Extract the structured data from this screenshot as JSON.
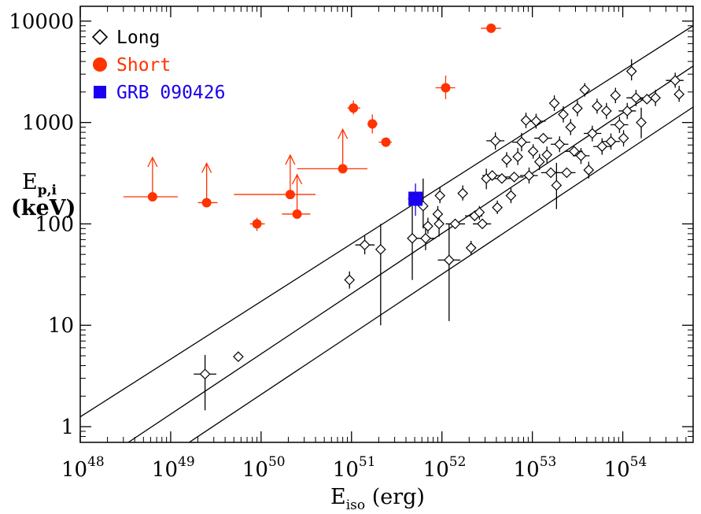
{
  "chart_data": {
    "type": "scatter",
    "xscale": "log",
    "yscale": "log",
    "xlim": [
      1e+48,
      6e+54
    ],
    "ylim": [
      0.7,
      14000
    ],
    "xticks": [
      {
        "base": "10",
        "exp": "48",
        "value": 1e+48
      },
      {
        "base": "10",
        "exp": "49",
        "value": 1e+49
      },
      {
        "base": "10",
        "exp": "50",
        "value": 1e+50
      },
      {
        "base": "10",
        "exp": "51",
        "value": 1e+51
      },
      {
        "base": "10",
        "exp": "52",
        "value": 1e+52
      },
      {
        "base": "10",
        "exp": "53",
        "value": 1e+53
      },
      {
        "base": "10",
        "exp": "54",
        "value": 1e+54
      }
    ],
    "yticks": [
      {
        "label": "1",
        "value": 1
      },
      {
        "label": "10",
        "value": 10
      },
      {
        "label": "100",
        "value": 100
      },
      {
        "label": "1000",
        "value": 1000
      },
      {
        "label": "10000",
        "value": 10000
      }
    ],
    "xlabel": {
      "main": "E",
      "sub": "iso",
      "unit": " (erg)"
    },
    "ylabel": {
      "main": "E",
      "sub": "p,i",
      "unit": "(keV)"
    },
    "legend": {
      "placement": "top-left",
      "entries": [
        {
          "label": "Long",
          "marker": "diamond",
          "color": "#000000"
        },
        {
          "label": "Short",
          "marker": "circle",
          "color": "#ff3300"
        },
        {
          "label": "GRB 090426",
          "marker": "square",
          "color": "#1a00ee"
        }
      ]
    },
    "lines": [
      {
        "x": [
          1e+48,
          6e+54
        ],
        "y": [
          1.25,
          9000
        ]
      },
      {
        "x": [
          3.4e+48,
          6e+54
        ],
        "y": [
          0.7,
          3600
        ]
      },
      {
        "x": [
          1.6e+49,
          6e+54
        ],
        "y": [
          0.7,
          1420
        ]
      }
    ],
    "series": [
      {
        "name": "Long",
        "marker": "diamond",
        "color": "#000000",
        "points": [
          {
            "x": 2.4e+49,
            "y": 3.3,
            "xerr": [
              1.8e+49,
              3.2e+49
            ],
            "yerr": [
              1.45,
              5.1
            ]
          },
          {
            "x": 5.6e+49,
            "y": 4.9
          },
          {
            "x": 9.5e+50,
            "y": 28,
            "yerr": [
              23,
              34
            ]
          },
          {
            "x": 1.4e+51,
            "y": 62,
            "xerr": [
              1.1e+51,
              1.8e+51
            ],
            "yerr": [
              50,
              76
            ]
          },
          {
            "x": 2.1e+51,
            "y": 56,
            "yerr": [
              10,
              100
            ]
          },
          {
            "x": 4.7e+51,
            "y": 72,
            "yerr": [
              28,
              150
            ]
          },
          {
            "x": 6.6e+51,
            "y": 72,
            "xerr": [
              5.3e+51,
              8.5e+51
            ],
            "yerr": [
              55,
              95
            ]
          },
          {
            "x": 6.2e+51,
            "y": 150,
            "yerr": [
              90,
              280
            ]
          },
          {
            "x": 7e+51,
            "y": 95,
            "yerr": [
              80,
              115
            ]
          },
          {
            "x": 9.5e+51,
            "y": 190,
            "yerr": [
              160,
              230
            ]
          },
          {
            "x": 9e+51,
            "y": 125,
            "yerr": [
              100,
              150
            ]
          },
          {
            "x": 9.3e+51,
            "y": 100,
            "yerr": [
              75,
              130
            ]
          },
          {
            "x": 1.2e+52,
            "y": 44,
            "xerr": [
              9e+51,
              1.6e+52
            ],
            "yerr": [
              11,
              100
            ]
          },
          {
            "x": 1.7e+52,
            "y": 200,
            "yerr": [
              170,
              240
            ]
          },
          {
            "x": 1.4e+52,
            "y": 100,
            "xerr": [
              1.1e+52,
              1.8e+52
            ]
          },
          {
            "x": 2.1e+52,
            "y": 58,
            "yerr": [
              50,
              68
            ]
          },
          {
            "x": 2.3e+52,
            "y": 120,
            "xerr": [
              1.8e+52,
              2.8e+52
            ]
          },
          {
            "x": 2.6e+52,
            "y": 130,
            "yerr": [
              110,
              150
            ]
          },
          {
            "x": 2.8e+52,
            "y": 100,
            "xerr": [
              2.2e+52,
              3.5e+52
            ]
          },
          {
            "x": 3.1e+52,
            "y": 280,
            "yerr": [
              220,
              350
            ]
          },
          {
            "x": 3.6e+52,
            "y": 300,
            "xerr": [
              2.8e+52,
              4.5e+52
            ]
          },
          {
            "x": 3.9e+52,
            "y": 660,
            "xerr": [
              3.1e+52,
              4.9e+52
            ],
            "yerr": [
              540,
              800
            ]
          },
          {
            "x": 4.1e+52,
            "y": 145,
            "yerr": [
              125,
              170
            ]
          },
          {
            "x": 4.6e+52,
            "y": 280,
            "xerr": [
              3.6e+52,
              5.7e+52
            ]
          },
          {
            "x": 5.2e+52,
            "y": 430,
            "yerr": [
              360,
              510
            ]
          },
          {
            "x": 5.8e+52,
            "y": 190,
            "yerr": [
              160,
              225
            ]
          },
          {
            "x": 6.3e+52,
            "y": 290,
            "xerr": [
              5e+52,
              8e+52
            ]
          },
          {
            "x": 6.9e+52,
            "y": 460,
            "yerr": [
              380,
              560
            ]
          },
          {
            "x": 7.6e+52,
            "y": 640,
            "xerr": [
              6e+52,
              9.5e+52
            ],
            "yerr": [
              520,
              790
            ]
          },
          {
            "x": 8.5e+52,
            "y": 1050,
            "yerr": [
              880,
              1250
            ]
          },
          {
            "x": 9.2e+52,
            "y": 300,
            "xerr": [
              7.3e+52,
              1.15e+53
            ],
            "yerr": [
              250,
              360
            ]
          },
          {
            "x": 1.02e+53,
            "y": 520,
            "yerr": [
              440,
              610
            ]
          },
          {
            "x": 1.1e+53,
            "y": 1030,
            "xerr": [
              8.5e+52,
              1.4e+53
            ],
            "yerr": [
              870,
              1220
            ]
          },
          {
            "x": 1.2e+53,
            "y": 410,
            "yerr": [
              340,
              490
            ]
          },
          {
            "x": 1.32e+53,
            "y": 700,
            "xerr": [
              1.05e+53,
              1.65e+53
            ]
          },
          {
            "x": 1.45e+53,
            "y": 480,
            "yerr": [
              400,
              580
            ]
          },
          {
            "x": 1.6e+53,
            "y": 320,
            "xerr": [
              1.25e+53,
              2e+53
            ]
          },
          {
            "x": 1.75e+53,
            "y": 1550,
            "yerr": [
              1300,
              1850
            ]
          },
          {
            "x": 1.85e+53,
            "y": 240,
            "yerr": [
              140,
              400
            ]
          },
          {
            "x": 2e+53,
            "y": 610,
            "xerr": [
              1.6e+53,
              2.5e+53
            ],
            "yerr": [
              510,
              730
            ]
          },
          {
            "x": 2.2e+53,
            "y": 1200,
            "yerr": [
              1000,
              1450
            ]
          },
          {
            "x": 2.4e+53,
            "y": 320,
            "xerr": [
              1.9e+53,
              3e+53
            ]
          },
          {
            "x": 2.65e+53,
            "y": 900,
            "yerr": [
              750,
              1080
            ]
          },
          {
            "x": 2.9e+53,
            "y": 520,
            "xerr": [
              2.3e+53,
              3.6e+53
            ]
          },
          {
            "x": 3.15e+53,
            "y": 1380,
            "yerr": [
              1150,
              1650
            ]
          },
          {
            "x": 3.45e+53,
            "y": 470,
            "xerr": [
              2.8e+53,
              4.3e+53
            ],
            "yerr": [
              390,
              560
            ]
          },
          {
            "x": 3.8e+53,
            "y": 2100,
            "yerr": [
              1800,
              2450
            ]
          },
          {
            "x": 4.2e+53,
            "y": 340,
            "yerr": [
              280,
              410
            ]
          },
          {
            "x": 4.6e+53,
            "y": 780,
            "xerr": [
              3.7e+53,
              5.8e+53
            ],
            "yerr": [
              650,
              930
            ]
          },
          {
            "x": 5.2e+53,
            "y": 1450,
            "yerr": [
              1220,
              1720
            ]
          },
          {
            "x": 5.9e+53,
            "y": 580,
            "xerr": [
              4.7e+53,
              7.4e+53
            ],
            "yerr": [
              480,
              700
            ]
          },
          {
            "x": 6.6e+53,
            "y": 1300,
            "yerr": [
              1080,
              1560
            ]
          },
          {
            "x": 7.4e+53,
            "y": 650,
            "xerr": [
              5.9e+53,
              9.3e+53
            ],
            "yerr": [
              540,
              780
            ]
          },
          {
            "x": 8.3e+53,
            "y": 1850,
            "yerr": [
              1550,
              2200
            ]
          },
          {
            "x": 9.2e+53,
            "y": 950,
            "xerr": [
              7.3e+53,
              1.15e+54
            ],
            "yerr": [
              790,
              1140
            ]
          },
          {
            "x": 1.02e+54,
            "y": 700,
            "yerr": [
              580,
              840
            ]
          },
          {
            "x": 1.12e+54,
            "y": 1300,
            "xerr": [
              9e+53,
              1.4e+54
            ],
            "yerr": [
              1080,
              1560
            ]
          },
          {
            "x": 1.25e+54,
            "y": 3200,
            "yerr": [
              2600,
              4200
            ]
          },
          {
            "x": 1.4e+54,
            "y": 1750,
            "xerr": [
              1.1e+54,
              1.75e+54
            ],
            "yerr": [
              1450,
              2100
            ]
          },
          {
            "x": 1.6e+54,
            "y": 1000,
            "yerr": [
              700,
              1400
            ]
          },
          {
            "x": 1.85e+54,
            "y": 1700,
            "xerr": [
              1.5e+54,
              2.3e+54
            ]
          },
          {
            "x": 2.3e+54,
            "y": 1750,
            "yerr": [
              1450,
              2100
            ]
          },
          {
            "x": 3.8e+54,
            "y": 2600,
            "xerr": [
              3e+54,
              4.7e+54
            ],
            "yerr": [
              2200,
              3100
            ]
          },
          {
            "x": 4.2e+54,
            "y": 1900,
            "yerr": [
              1600,
              2300
            ]
          }
        ]
      },
      {
        "name": "Short",
        "marker": "circle",
        "color": "#ff3300",
        "points": [
          {
            "x": 6.3e+48,
            "y": 185,
            "xerr": [
              3e+48,
              1.2e+49
            ],
            "lower_limit": true
          },
          {
            "x": 2.5e+49,
            "y": 162,
            "xerr": [
              2e+49,
              3.3e+49
            ],
            "lower_limit": true
          },
          {
            "x": 9e+49,
            "y": 100,
            "xerr": [
              7.5e+49,
              1.1e+50
            ],
            "yerr": [
              85,
              115
            ]
          },
          {
            "x": 2.1e+50,
            "y": 195,
            "xerr": [
              5e+49,
              4e+50
            ],
            "lower_limit": true
          },
          {
            "x": 2.5e+50,
            "y": 125,
            "xerr": [
              1.7e+50,
              3.5e+50
            ],
            "lower_limit": true
          },
          {
            "x": 8e+50,
            "y": 350,
            "xerr": [
              2.5e+50,
              1.5e+51
            ],
            "lower_limit": true
          },
          {
            "x": 1.05e+51,
            "y": 1390,
            "xerr": [
              9e+50,
              1.25e+51
            ],
            "yerr": [
              1200,
              1650
            ]
          },
          {
            "x": 1.7e+51,
            "y": 970,
            "xerr": [
              1.5e+51,
              1.95e+51
            ],
            "yerr": [
              780,
              1200
            ]
          },
          {
            "x": 2.4e+51,
            "y": 640,
            "xerr": [
              2e+51,
              2.8e+51
            ],
            "yerr": [
              600,
              680
            ]
          },
          {
            "x": 1.1e+52,
            "y": 2200,
            "xerr": [
              8.5e+51,
              1.4e+52
            ],
            "yerr": [
              1700,
              2900
            ]
          },
          {
            "x": 3.5e+52,
            "y": 8500,
            "xerr": [
              2.7e+52,
              4.5e+52
            ]
          }
        ]
      },
      {
        "name": "GRB 090426",
        "marker": "square",
        "color": "#1a00ee",
        "points": [
          {
            "x": 5.1e+51,
            "y": 177,
            "xerr": [
              4.2e+51,
              6.1e+51
            ],
            "yerr": [
              120,
              250
            ]
          }
        ]
      }
    ]
  }
}
